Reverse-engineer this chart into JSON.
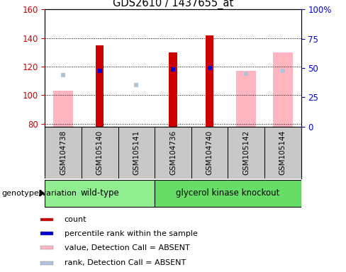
{
  "title": "GDS2610 / 1437655_at",
  "samples": [
    "GSM104738",
    "GSM105140",
    "GSM105141",
    "GSM104736",
    "GSM104740",
    "GSM105142",
    "GSM105144"
  ],
  "ylim_left": [
    78,
    160
  ],
  "ylim_right": [
    0,
    100
  ],
  "yticks_left": [
    80,
    100,
    120,
    140,
    160
  ],
  "yticks_right": [
    0,
    25,
    50,
    75,
    100
  ],
  "yticklabels_right": [
    "0",
    "25",
    "50",
    "75",
    "100%"
  ],
  "count_values": [
    null,
    135,
    null,
    130,
    142,
    null,
    null
  ],
  "count_color": "#CC0000",
  "value_absent_values": [
    103,
    null,
    null,
    null,
    null,
    117,
    130
  ],
  "value_absent_color": "#FFB6C1",
  "rank_absent_values": [
    114,
    null,
    107,
    null,
    null,
    115,
    117
  ],
  "rank_absent_color": "#B0C4DE",
  "percentile_values": [
    null,
    117,
    null,
    118,
    119,
    null,
    null
  ],
  "percentile_color": "#0000CC",
  "background_color": "#FFFFFF",
  "tick_label_color_left": "#CC0000",
  "tick_label_color_right": "#0000CC",
  "wt_color": "#90EE90",
  "gk_color": "#66DD66",
  "names_bg": "#C8C8C8",
  "legend_items": [
    {
      "label": "count",
      "color": "#CC0000"
    },
    {
      "label": "percentile rank within the sample",
      "color": "#0000CC"
    },
    {
      "label": "value, Detection Call = ABSENT",
      "color": "#FFB6C1"
    },
    {
      "label": "rank, Detection Call = ABSENT",
      "color": "#B0C4DE"
    }
  ]
}
